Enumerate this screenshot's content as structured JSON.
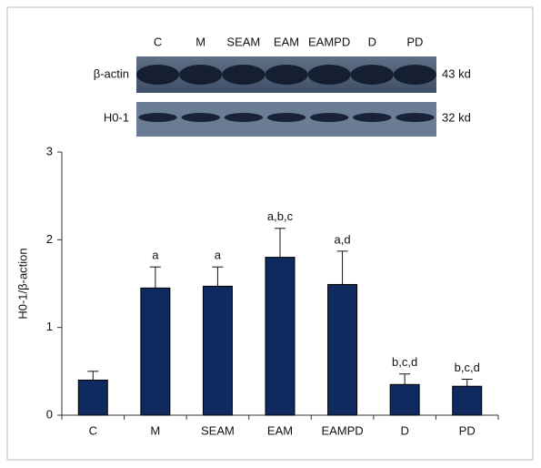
{
  "blot": {
    "lanes": [
      "C",
      "M",
      "SEAM",
      "EAM",
      "EAMPD",
      "D",
      "PD"
    ],
    "rows": [
      {
        "label": "β-actin",
        "size": "43 kd"
      },
      {
        "label": "H0-1",
        "size": "32 kd"
      }
    ]
  },
  "chart_data": {
    "type": "bar",
    "y_label": "H0-1/β-action",
    "categories": [
      "C",
      "M",
      "SEAM",
      "EAM",
      "EAMPD",
      "D",
      "PD"
    ],
    "values": [
      0.4,
      1.45,
      1.47,
      1.8,
      1.49,
      0.35,
      0.33
    ],
    "errors": [
      0.1,
      0.24,
      0.22,
      0.33,
      0.38,
      0.12,
      0.08
    ],
    "annotations": [
      null,
      "a",
      "a",
      "a,b,c",
      "a,d",
      "b,c,d",
      "b,c,d"
    ],
    "color": "#0e2a5e",
    "ylim": [
      0,
      3
    ],
    "yticks": [
      0,
      1,
      2,
      3
    ]
  }
}
